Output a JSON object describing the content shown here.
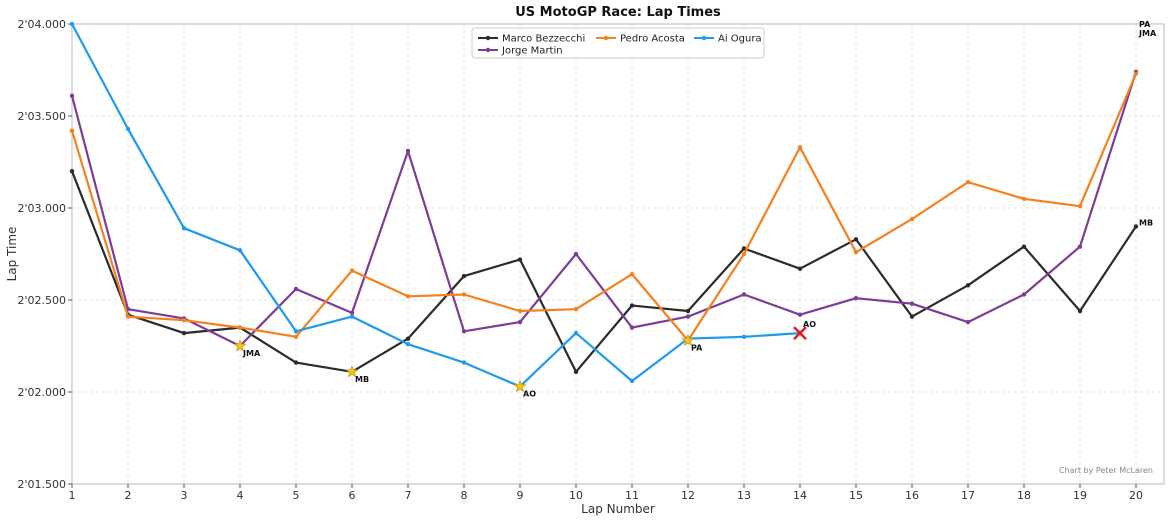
{
  "chart_data": {
    "type": "line",
    "title": "US MotoGP Race: Lap Times",
    "xlabel": "Lap Number",
    "ylabel": "Lap Time",
    "x": [
      1,
      2,
      3,
      4,
      5,
      6,
      7,
      8,
      9,
      10,
      11,
      12,
      13,
      14,
      15,
      16,
      17,
      18,
      19,
      20
    ],
    "xlim": [
      1,
      20.5
    ],
    "ylim": [
      121.5,
      124.0
    ],
    "y_ticks": [
      121.5,
      122.0,
      122.5,
      123.0,
      123.5,
      124.0
    ],
    "y_tick_labels": [
      "2'01.500",
      "2'02.000",
      "2'02.500",
      "2'03.000",
      "2'03.500",
      "2'04.000"
    ],
    "grid": true,
    "legend_position": "top-center",
    "series": [
      {
        "name": "Marco Bezzecchi",
        "color": "#2b2b2b",
        "values": [
          123.2,
          122.42,
          122.32,
          122.35,
          122.16,
          122.11,
          122.29,
          122.63,
          122.72,
          122.11,
          122.47,
          122.44,
          122.78,
          122.67,
          122.83,
          122.41,
          122.58,
          122.79,
          122.44,
          122.9
        ]
      },
      {
        "name": "Jorge Martin",
        "color": "#7d3c98",
        "values": [
          123.61,
          122.45,
          122.4,
          122.25,
          122.56,
          122.43,
          123.31,
          122.33,
          122.38,
          122.75,
          122.35,
          122.41,
          122.53,
          122.42,
          122.51,
          122.48,
          122.38,
          122.53,
          122.79,
          123.74
        ]
      },
      {
        "name": "Pedro Acosta",
        "color": "#f5801e",
        "values": [
          123.42,
          122.41,
          122.39,
          122.35,
          122.3,
          122.66,
          122.52,
          122.53,
          122.44,
          122.45,
          122.64,
          122.28,
          122.75,
          123.33,
          122.76,
          122.94,
          123.14,
          123.05,
          123.01,
          123.73
        ]
      },
      {
        "name": "Ai Ogura",
        "color": "#1e9af0",
        "values": [
          124.0,
          123.43,
          122.89,
          122.77,
          122.33,
          122.41,
          122.26,
          122.16,
          122.03,
          122.32,
          122.06,
          122.29,
          122.3,
          122.32,
          null,
          null,
          null,
          null,
          null,
          null
        ]
      }
    ],
    "best_laps": [
      {
        "lap": 4,
        "value": 122.25,
        "label": "JMA"
      },
      {
        "lap": 6,
        "value": 122.11,
        "label": "MB"
      },
      {
        "lap": 9,
        "value": 122.03,
        "label": "AO"
      },
      {
        "lap": 12,
        "value": 122.28,
        "label": "PA"
      }
    ],
    "crash": {
      "lap": 14,
      "value": 122.32,
      "label": "AO",
      "color": "#e31b23"
    },
    "end_labels": [
      {
        "lap": 20,
        "value": 124.0,
        "label": "PA"
      },
      {
        "lap": 20,
        "value": 123.95,
        "label": "JMA"
      },
      {
        "lap": 20,
        "value": 122.92,
        "label": "MB"
      }
    ],
    "credit": "Chart by Peter McLaren"
  }
}
